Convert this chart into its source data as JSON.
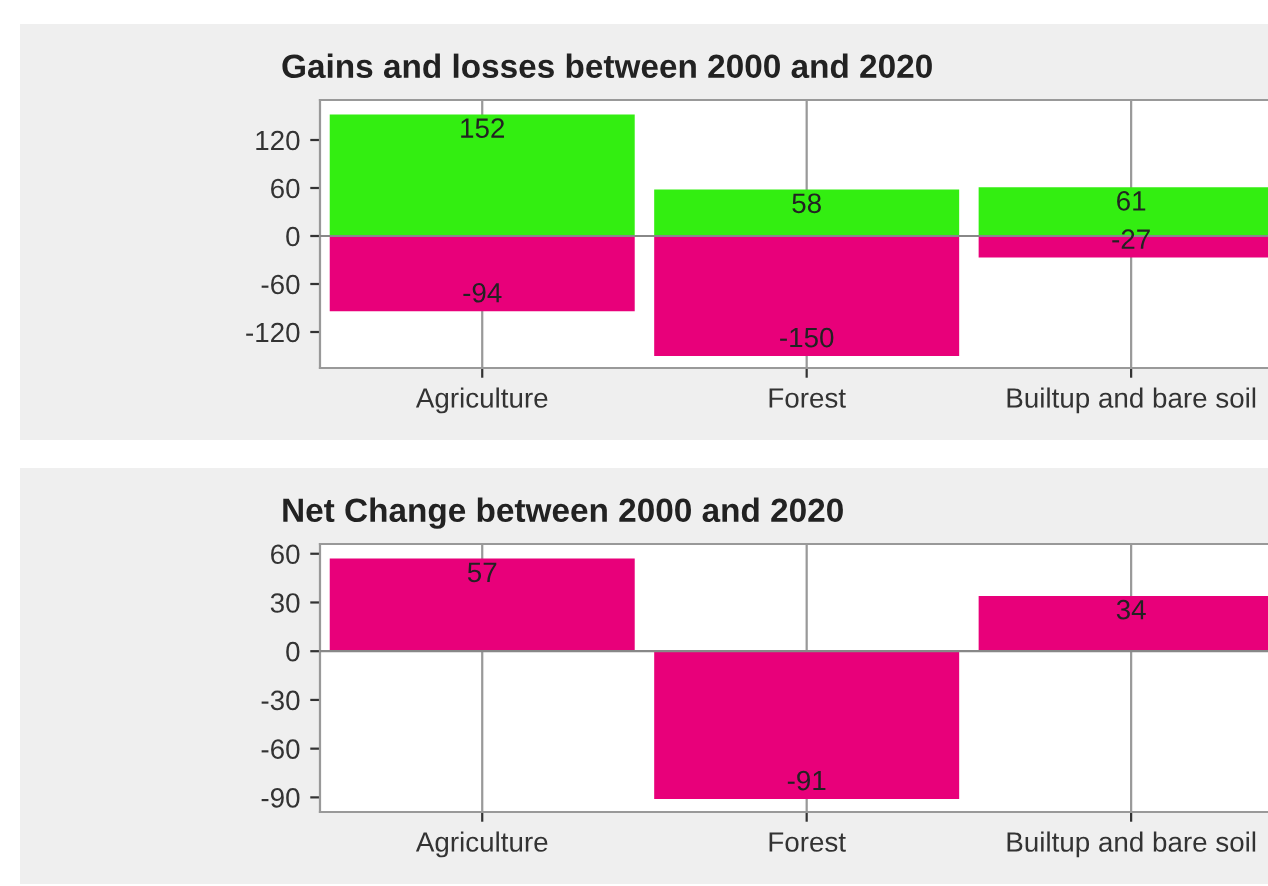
{
  "chart_data": [
    {
      "type": "bar",
      "title": "Gains and losses between 2000 and 2020",
      "categories": [
        "Agriculture",
        "Forest",
        "Builtup and bare soil"
      ],
      "stacked": true,
      "series": [
        {
          "color": "#33ee11",
          "values": [
            152,
            58,
            61
          ]
        },
        {
          "color": "#e8007a",
          "values": [
            -94,
            -150,
            -27
          ]
        }
      ],
      "ylim": [
        -165,
        170
      ],
      "yticks": [
        -120,
        -60,
        0,
        60,
        120
      ],
      "grid": "x",
      "data_labels": true
    },
    {
      "type": "bar",
      "title": "Net Change between 2000 and 2020",
      "categories": [
        "Agriculture",
        "Forest",
        "Builtup and bare soil"
      ],
      "series": [
        {
          "color": "#e8007a",
          "values": [
            57,
            -91,
            34
          ]
        }
      ],
      "ylim": [
        -99,
        66
      ],
      "yticks": [
        -90,
        -60,
        -30,
        0,
        30,
        60
      ],
      "grid": "x",
      "data_labels": true
    }
  ]
}
